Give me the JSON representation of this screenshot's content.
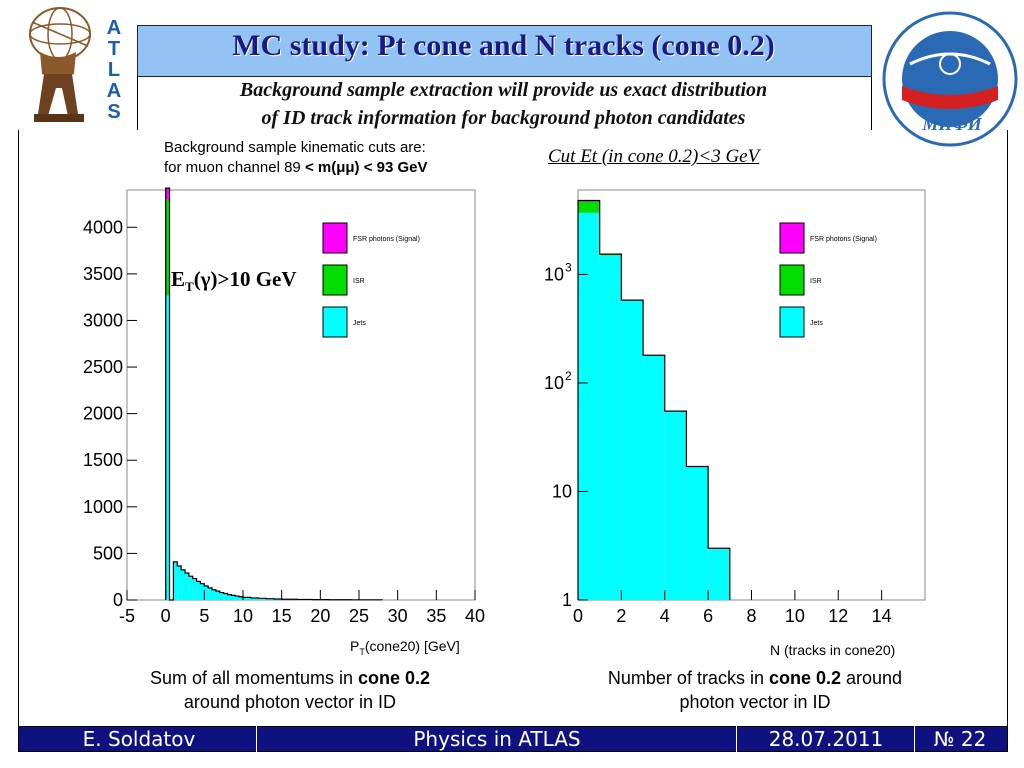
{
  "header": {
    "title": "MC study: Pt cone and N tracks (cone 0.2)",
    "subtitle_line1": "Background sample extraction will provide us exact distribution",
    "subtitle_line2": "of ID track information for background photon candidates",
    "left_logo_letters": [
      "A",
      "T",
      "L",
      "A",
      "S"
    ],
    "right_logo_text": "МИФИ"
  },
  "cuts": {
    "line1": "Background sample kinematic cuts are:",
    "line2_prefix": "for muon channel 89 ",
    "line2_bold": "< m(μμ) < 93 GeV"
  },
  "right_cut_label": "Cut Et (in cone 0.2)<3 GeV",
  "et_label_main": "E",
  "et_label_sub": "T",
  "et_label_rest": "(γ)>10 GeV",
  "captions": {
    "left_pre": "Sum of all momentums in ",
    "left_bold": "cone 0.2",
    "left_post": "around photon vector in ID",
    "right_pre": "Number of tracks in ",
    "right_bold": "cone 0.2",
    "right_post": " around",
    "right_line2": "photon vector in ID"
  },
  "footer": {
    "author": "E. Soldatov",
    "event": "Physics in ATLAS",
    "date": "28.07.2011",
    "page": "№ 22"
  },
  "chart_data": [
    {
      "type": "bar",
      "stacked": true,
      "xlabel_main": "P",
      "xlabel_sub": "T",
      "xlabel_rest": "(cone20) [GeV]",
      "xlim": [
        -5,
        40
      ],
      "ylim": [
        0,
        4400
      ],
      "xticks": [
        -5,
        0,
        5,
        10,
        15,
        20,
        25,
        30,
        35,
        40
      ],
      "yticks": [
        0,
        500,
        1000,
        1500,
        2000,
        2500,
        3000,
        3500,
        4000
      ],
      "legend": {
        "position": "top-right",
        "entries": [
          "FSR photons (Signal)",
          "ISR",
          "Jets"
        ]
      },
      "colors": {
        "signal": "#ff00ff",
        "isr": "#00dd00",
        "jets": "#00ffff"
      },
      "bins": [
        {
          "x0": 0,
          "x1": 0.5,
          "jets": 3270,
          "isr": 1030,
          "signal": 120
        },
        {
          "x0": 0.5,
          "x1": 1,
          "jets": 0,
          "isr": 0,
          "signal": 0
        },
        {
          "x0": 1,
          "x1": 1.5,
          "jets": 400,
          "isr": 10,
          "signal": 0
        },
        {
          "x0": 1.5,
          "x1": 2,
          "jets": 360,
          "isr": 5,
          "signal": 0
        },
        {
          "x0": 2,
          "x1": 2.5,
          "jets": 320,
          "isr": 3,
          "signal": 0
        },
        {
          "x0": 2.5,
          "x1": 3,
          "jets": 290,
          "isr": 0,
          "signal": 0
        },
        {
          "x0": 3,
          "x1": 3.5,
          "jets": 255,
          "isr": 0,
          "signal": 0
        },
        {
          "x0": 3.5,
          "x1": 4,
          "jets": 230,
          "isr": 0,
          "signal": 0
        },
        {
          "x0": 4,
          "x1": 4.5,
          "jets": 200,
          "isr": 0,
          "signal": 0
        },
        {
          "x0": 4.5,
          "x1": 5,
          "jets": 175,
          "isr": 0,
          "signal": 0
        },
        {
          "x0": 5,
          "x1": 5.5,
          "jets": 150,
          "isr": 0,
          "signal": 0
        },
        {
          "x0": 5.5,
          "x1": 6,
          "jets": 130,
          "isr": 0,
          "signal": 0
        },
        {
          "x0": 6,
          "x1": 6.5,
          "jets": 110,
          "isr": 0,
          "signal": 0
        },
        {
          "x0": 6.5,
          "x1": 7,
          "jets": 95,
          "isr": 0,
          "signal": 0
        },
        {
          "x0": 7,
          "x1": 7.5,
          "jets": 80,
          "isr": 0,
          "signal": 0
        },
        {
          "x0": 7.5,
          "x1": 8,
          "jets": 70,
          "isr": 0,
          "signal": 0
        },
        {
          "x0": 8,
          "x1": 8.5,
          "jets": 58,
          "isr": 0,
          "signal": 0
        },
        {
          "x0": 8.5,
          "x1": 9,
          "jets": 50,
          "isr": 0,
          "signal": 0
        },
        {
          "x0": 9,
          "x1": 9.5,
          "jets": 42,
          "isr": 0,
          "signal": 0
        },
        {
          "x0": 9.5,
          "x1": 10,
          "jets": 35,
          "isr": 0,
          "signal": 0
        },
        {
          "x0": 10,
          "x1": 11,
          "jets": 28,
          "isr": 0,
          "signal": 0
        },
        {
          "x0": 11,
          "x1": 12,
          "jets": 22,
          "isr": 0,
          "signal": 0
        },
        {
          "x0": 12,
          "x1": 13,
          "jets": 18,
          "isr": 0,
          "signal": 0
        },
        {
          "x0": 13,
          "x1": 14,
          "jets": 14,
          "isr": 0,
          "signal": 0
        },
        {
          "x0": 14,
          "x1": 15,
          "jets": 11,
          "isr": 0,
          "signal": 0
        },
        {
          "x0": 15,
          "x1": 17,
          "jets": 8,
          "isr": 0,
          "signal": 0
        },
        {
          "x0": 17,
          "x1": 19,
          "jets": 6,
          "isr": 0,
          "signal": 0
        },
        {
          "x0": 19,
          "x1": 21,
          "jets": 4,
          "isr": 0,
          "signal": 0
        },
        {
          "x0": 21,
          "x1": 24,
          "jets": 3,
          "isr": 0,
          "signal": 0
        },
        {
          "x0": 24,
          "x1": 28,
          "jets": 2,
          "isr": 0,
          "signal": 0
        }
      ]
    },
    {
      "type": "bar",
      "stacked": true,
      "log_y": true,
      "xlabel": "N (tracks in cone20)",
      "xlim": [
        0,
        16
      ],
      "ylim": [
        1,
        6000
      ],
      "xticks": [
        0,
        2,
        4,
        6,
        8,
        10,
        12,
        14
      ],
      "yticks": [
        {
          "value": 1,
          "base": "1",
          "exp": ""
        },
        {
          "value": 10,
          "base": "10",
          "exp": ""
        },
        {
          "value": 100,
          "base": "10",
          "exp": "2"
        },
        {
          "value": 1000,
          "base": "10",
          "exp": "3"
        }
      ],
      "legend": {
        "position": "top-right",
        "entries": [
          "FSR photons (Signal)",
          "ISR",
          "Jets"
        ]
      },
      "colors": {
        "signal": "#ff00ff",
        "isr": "#00dd00",
        "jets": "#00ffff"
      },
      "bins": [
        {
          "x0": 0,
          "x1": 1,
          "jets": 3700,
          "isr": 1000,
          "signal": 100
        },
        {
          "x0": 1,
          "x1": 2,
          "jets": 1500,
          "isr": 40,
          "signal": 0
        },
        {
          "x0": 2,
          "x1": 3,
          "jets": 580,
          "isr": 0,
          "signal": 0
        },
        {
          "x0": 3,
          "x1": 4,
          "jets": 180,
          "isr": 0,
          "signal": 0
        },
        {
          "x0": 4,
          "x1": 5,
          "jets": 55,
          "isr": 0,
          "signal": 0
        },
        {
          "x0": 5,
          "x1": 6,
          "jets": 17,
          "isr": 0,
          "signal": 0
        },
        {
          "x0": 6,
          "x1": 7,
          "jets": 3,
          "isr": 0,
          "signal": 0
        }
      ]
    }
  ]
}
